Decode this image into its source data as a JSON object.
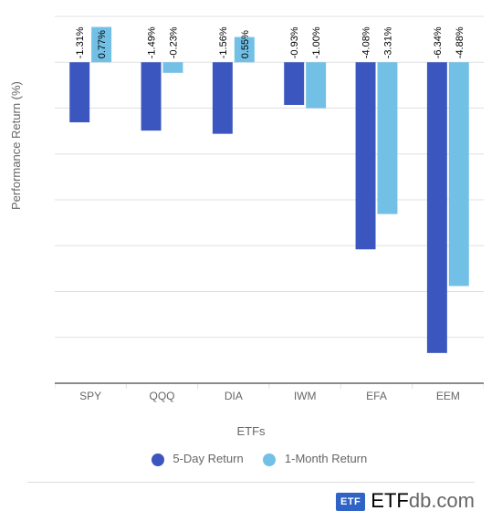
{
  "chart": {
    "type": "bar",
    "ylabel": "Performance Return (%)",
    "xlabel": "ETFs",
    "ylim": [
      -7,
      1
    ],
    "ytick_step": 1,
    "categories": [
      "SPY",
      "QQQ",
      "DIA",
      "IWM",
      "EFA",
      "EEM"
    ],
    "series": [
      {
        "name": "5-Day Return",
        "color": "#3b56bf",
        "values": [
          -1.31,
          -1.49,
          -1.56,
          -0.93,
          -4.08,
          -6.34
        ]
      },
      {
        "name": "1-Month Return",
        "color": "#72c0e6",
        "values": [
          0.77,
          -0.23,
          0.55,
          -1.0,
          -3.31,
          -4.88
        ]
      }
    ],
    "grid_color": "#e0e0e0",
    "background_color": "#ffffff",
    "bar_width": 0.28,
    "label_fontsize": 11
  },
  "legend": {
    "s1": "5-Day Return",
    "s2": "1-Month Return"
  },
  "footer": {
    "logo_badge": "ETF",
    "logo_main": "ETF",
    "logo_suffix": "db",
    "logo_tld": ".com"
  }
}
